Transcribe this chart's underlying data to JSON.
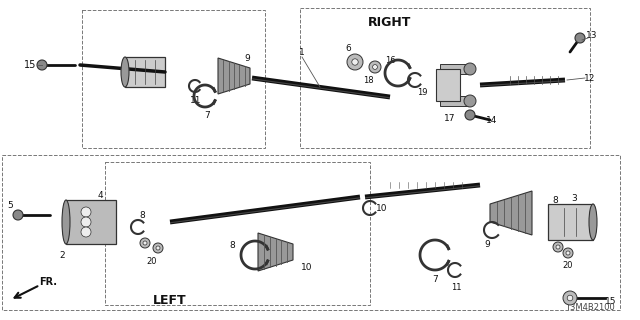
{
  "bg_color": "#ffffff",
  "line_color": "#1a1a1a",
  "diagram_code": "T3M4B2100",
  "right_label": "RIGHT",
  "left_label": "LEFT",
  "fr_label": "FR.",
  "shaft_color": "#222222",
  "part_dark": "#333333",
  "part_mid": "#666666",
  "part_light": "#aaaaaa",
  "box_dash_color": "#888888"
}
